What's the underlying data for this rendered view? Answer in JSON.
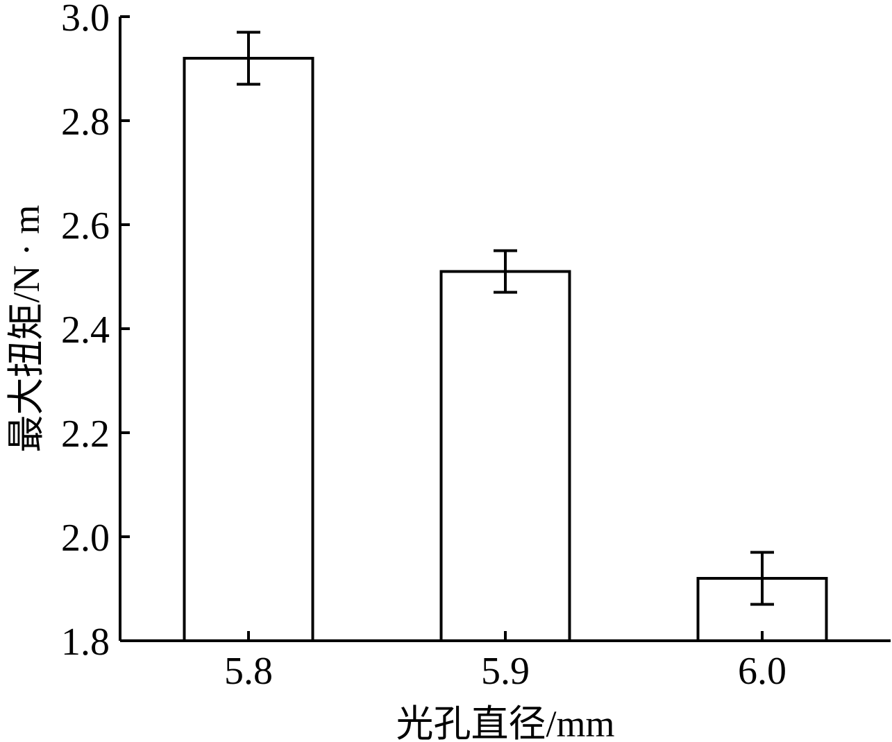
{
  "chart_data": {
    "type": "bar",
    "categories": [
      "5.8",
      "5.9",
      "6.0"
    ],
    "values": [
      2.92,
      2.51,
      1.92
    ],
    "errors": [
      0.05,
      0.04,
      0.05
    ],
    "xlabel": "光孔直径/mm",
    "ylabel": "最大扭矩/N · m",
    "ylim": [
      1.8,
      3.0
    ],
    "yticks": [
      "1.8",
      "2.0",
      "2.2",
      "2.4",
      "2.6",
      "2.8",
      "3.0"
    ],
    "grid": false,
    "colors": {
      "bar_fill": "#ffffff",
      "stroke": "#000000"
    }
  }
}
